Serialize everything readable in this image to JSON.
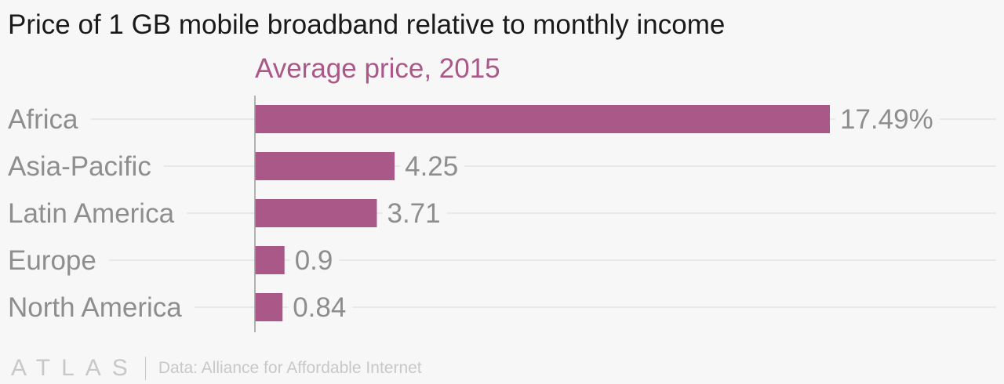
{
  "chart_data": {
    "type": "bar",
    "orientation": "horizontal",
    "title": "Price of 1 GB mobile broadband relative to monthly income",
    "subtitle": "Average price, 2015",
    "categories": [
      "Africa",
      "Asia-Pacific",
      "Latin America",
      "Europe",
      "North America"
    ],
    "values": [
      17.49,
      4.25,
      3.71,
      0.9,
      0.84
    ],
    "value_labels": [
      "17.49%",
      "4.25",
      "3.71",
      "0.9",
      "0.84"
    ],
    "xlim": [
      0,
      17.49
    ],
    "grid": true,
    "legend": "none",
    "colors": {
      "bar": "#aa5888",
      "subtitle": "#aa5888",
      "label": "#8e8e8e",
      "grid": "#e3e3e3",
      "axis": "#9a9a9a"
    }
  },
  "footer": {
    "logo": "ATLAS",
    "source": "Data: Alliance for Affordable Internet"
  }
}
